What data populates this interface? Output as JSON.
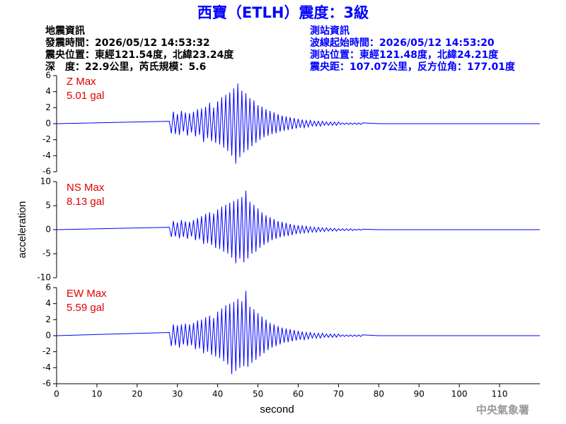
{
  "header": {
    "title": "西寶（ETLH）震度：3級",
    "event_info": [
      "地震資訊",
      "發震時間：2026/05/12 14:53:32",
      "震央位置：東經121.54度，北緯23.24度",
      "深　度：22.9公里，芮氏規模：5.6"
    ],
    "station_info": [
      "測站資訊",
      "波線起始時間：2026/05/12 14:53:20",
      "測站位置：東經121.48度，北緯24.21度",
      "震央距：107.07公里，反方位角：177.01度"
    ]
  },
  "footer": "中央氣象署",
  "chart_data": [
    {
      "type": "line",
      "annotation": [
        "Z Max",
        "5.01 gal"
      ],
      "xlim": [
        0,
        120
      ],
      "ylim": [
        -6,
        6
      ],
      "yticks": [
        -6,
        -4,
        -2,
        0,
        2,
        4,
        6
      ],
      "x": [
        0,
        28,
        28.5,
        29,
        29.5,
        30,
        30.5,
        31,
        31.5,
        32,
        32.5,
        33,
        33.5,
        34,
        34.5,
        35,
        35.5,
        36,
        36.5,
        37,
        37.5,
        38,
        38.5,
        39,
        39.5,
        40,
        40.5,
        41,
        41.5,
        42,
        42.5,
        43,
        43.5,
        44,
        44.5,
        45,
        45.5,
        46,
        46.5,
        47,
        47.5,
        48,
        48.5,
        49,
        49.5,
        50,
        50.5,
        51,
        51.5,
        52,
        52.5,
        53,
        53.5,
        54,
        54.5,
        55,
        55.5,
        56,
        56.5,
        57,
        57.5,
        58,
        58.5,
        59,
        59.5,
        60,
        60.5,
        61,
        61.5,
        62,
        62.5,
        63,
        63.5,
        64,
        64.5,
        65,
        65.5,
        66,
        66.5,
        67,
        67.5,
        68,
        68.5,
        69,
        69.5,
        70,
        70.5,
        71,
        71.5,
        72,
        72.5,
        73,
        73.5,
        74,
        74.5,
        75,
        75.5,
        76,
        80,
        90,
        100,
        110,
        120
      ],
      "series": [
        {
          "color": "#0000ff",
          "values": [
            0,
            0.3,
            -1.2,
            1.5,
            -1.3,
            1.2,
            -1.4,
            1.6,
            -1.0,
            1.4,
            -1.5,
            1.3,
            -1.1,
            1.5,
            -1.6,
            1.8,
            -1.4,
            1.9,
            -2.3,
            2.1,
            -1.8,
            2.6,
            -2.2,
            2.0,
            -2.4,
            2.8,
            -2.6,
            3.3,
            -3.0,
            3.6,
            -3.4,
            3.9,
            -4.0,
            4.4,
            -5.0,
            5.01,
            -4.2,
            4.1,
            -3.6,
            3.8,
            -3.3,
            3.2,
            -2.8,
            2.9,
            -2.4,
            2.3,
            -2.0,
            2.1,
            -1.7,
            1.8,
            -1.5,
            1.6,
            -1.3,
            1.4,
            -1.2,
            1.2,
            -1.0,
            1.0,
            -0.9,
            0.9,
            -0.8,
            0.8,
            -0.7,
            0.7,
            -0.6,
            0.6,
            -0.5,
            0.5,
            -0.5,
            0.4,
            -0.4,
            0.4,
            -0.3,
            0.3,
            -0.3,
            0.3,
            -0.3,
            0.3,
            -0.2,
            0.2,
            -0.2,
            0.2,
            -0.2,
            0.2,
            -0.2,
            0.2,
            -0.1,
            0.1,
            -0.1,
            0.1,
            -0.1,
            0.1,
            -0.1,
            0.1,
            -0.1,
            0.1,
            -0.1,
            0.1,
            0,
            0,
            0,
            0,
            0
          ]
        }
      ]
    },
    {
      "type": "line",
      "annotation": [
        "NS Max",
        "8.13 gal"
      ],
      "ylabel": "acceleration",
      "xlim": [
        0,
        120
      ],
      "ylim": [
        -10,
        10
      ],
      "yticks": [
        -10,
        -5,
        0,
        5,
        10
      ],
      "x": [
        0,
        28,
        28.5,
        29,
        29.5,
        30,
        30.5,
        31,
        31.5,
        32,
        32.5,
        33,
        33.5,
        34,
        34.5,
        35,
        35.5,
        36,
        36.5,
        37,
        37.5,
        38,
        38.5,
        39,
        39.5,
        40,
        40.5,
        41,
        41.5,
        42,
        42.5,
        43,
        43.5,
        44,
        44.5,
        45,
        45.5,
        46,
        46.5,
        47,
        47.5,
        48,
        48.5,
        49,
        49.5,
        50,
        50.5,
        51,
        51.5,
        52,
        52.5,
        53,
        53.5,
        54,
        54.5,
        55,
        55.5,
        56,
        56.5,
        57,
        57.5,
        58,
        58.5,
        59,
        59.5,
        60,
        60.5,
        61,
        61.5,
        62,
        62.5,
        63,
        63.5,
        64,
        64.5,
        65,
        65.5,
        66,
        66.5,
        67,
        67.5,
        68,
        68.5,
        69,
        69.5,
        70,
        70.5,
        71,
        71.5,
        72,
        72.5,
        73,
        73.5,
        74,
        74.5,
        75,
        75.5,
        76,
        80,
        90,
        100,
        110,
        120
      ],
      "series": [
        {
          "color": "#0000ff",
          "values": [
            0,
            0.5,
            -1.5,
            1.8,
            -1.4,
            1.5,
            -1.8,
            2.0,
            -1.5,
            1.7,
            -1.9,
            1.6,
            -1.4,
            2.0,
            -2.2,
            2.4,
            -2.0,
            2.8,
            -3.0,
            3.3,
            -2.8,
            3.6,
            -3.2,
            3.4,
            -3.8,
            4.2,
            -4.0,
            4.8,
            -4.6,
            5.2,
            -5.0,
            5.6,
            -5.8,
            6.0,
            -7.0,
            6.4,
            -6.0,
            6.8,
            -6.8,
            8.13,
            -6.0,
            5.8,
            -5.0,
            5.2,
            -4.6,
            4.4,
            -3.8,
            3.6,
            -3.2,
            3.0,
            -2.7,
            2.6,
            -2.2,
            2.2,
            -1.9,
            1.8,
            -1.6,
            1.6,
            -1.4,
            1.4,
            -1.3,
            1.2,
            -1.1,
            1.0,
            -0.9,
            0.9,
            -0.8,
            0.8,
            -0.7,
            0.7,
            -0.6,
            0.6,
            -0.5,
            0.5,
            -0.5,
            0.5,
            -0.4,
            0.4,
            -0.4,
            0.4,
            -0.3,
            0.3,
            -0.3,
            0.3,
            -0.3,
            0.2,
            -0.2,
            0.2,
            -0.2,
            0.2,
            -0.2,
            0.2,
            -0.2,
            0.1,
            -0.1,
            0.1,
            -0.1,
            0.1,
            0,
            0,
            0,
            0,
            0
          ]
        }
      ]
    },
    {
      "type": "line",
      "annotation": [
        "EW Max",
        "5.59 gal"
      ],
      "xlabel": "second",
      "xlim": [
        0,
        120
      ],
      "xticks": [
        0,
        10,
        20,
        30,
        40,
        50,
        60,
        70,
        80,
        90,
        100,
        110
      ],
      "ylim": [
        -6,
        6
      ],
      "yticks": [
        -6,
        -4,
        -2,
        0,
        2,
        4,
        6
      ],
      "x": [
        0,
        28,
        28.5,
        29,
        29.5,
        30,
        30.5,
        31,
        31.5,
        32,
        32.5,
        33,
        33.5,
        34,
        34.5,
        35,
        35.5,
        36,
        36.5,
        37,
        37.5,
        38,
        38.5,
        39,
        39.5,
        40,
        40.5,
        41,
        41.5,
        42,
        42.5,
        43,
        43.5,
        44,
        44.5,
        45,
        45.5,
        46,
        46.5,
        47,
        47.5,
        48,
        48.5,
        49,
        49.5,
        50,
        50.5,
        51,
        51.5,
        52,
        52.5,
        53,
        53.5,
        54,
        54.5,
        55,
        55.5,
        56,
        56.5,
        57,
        57.5,
        58,
        58.5,
        59,
        59.5,
        60,
        60.5,
        61,
        61.5,
        62,
        62.5,
        63,
        63.5,
        64,
        64.5,
        65,
        65.5,
        66,
        66.5,
        67,
        67.5,
        68,
        68.5,
        69,
        69.5,
        70,
        70.5,
        71,
        71.5,
        72,
        72.5,
        73,
        73.5,
        74,
        74.5,
        75,
        75.5,
        76,
        80,
        90,
        100,
        110,
        120
      ],
      "series": [
        {
          "color": "#0000ff",
          "values": [
            0,
            0.4,
            -1.3,
            1.4,
            -1.2,
            1.3,
            -1.5,
            1.4,
            -1.1,
            1.5,
            -1.3,
            1.4,
            -1.2,
            1.6,
            -1.7,
            1.9,
            -1.6,
            2.0,
            -2.2,
            2.3,
            -2.0,
            2.5,
            -2.4,
            2.2,
            -2.6,
            3.0,
            -2.8,
            3.4,
            -3.2,
            3.8,
            -3.6,
            4.0,
            -4.8,
            4.2,
            -4.4,
            4.6,
            -4.0,
            4.3,
            -3.8,
            5.59,
            -3.9,
            3.6,
            -3.4,
            3.3,
            -3.0,
            2.8,
            -2.6,
            2.4,
            -2.2,
            2.0,
            -1.8,
            1.6,
            -1.5,
            1.4,
            -1.3,
            1.2,
            -1.1,
            1.0,
            -0.9,
            0.9,
            -0.8,
            0.8,
            -0.7,
            0.7,
            -0.6,
            0.6,
            -0.5,
            0.5,
            -0.5,
            0.4,
            -0.4,
            0.4,
            -0.3,
            0.3,
            -0.3,
            0.3,
            -0.3,
            0.3,
            -0.2,
            0.2,
            -0.2,
            0.2,
            -0.2,
            0.2,
            -0.2,
            0.2,
            -0.1,
            0.1,
            -0.1,
            0.1,
            -0.1,
            0.1,
            -0.1,
            0.1,
            -0.1,
            0.1,
            -0.1,
            0.1,
            0,
            0,
            0,
            0,
            0
          ]
        }
      ]
    }
  ]
}
